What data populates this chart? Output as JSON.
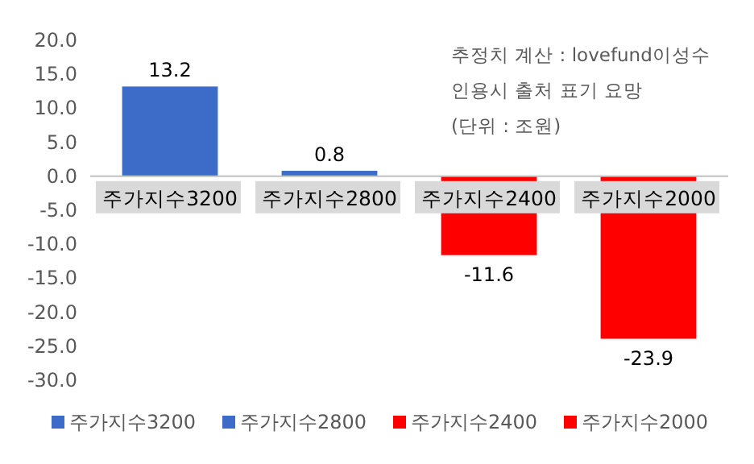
{
  "chart_data": {
    "type": "bar",
    "stacked": true,
    "categories": [
      "주가지수3200",
      "주가지수2800",
      "주가지수2400",
      "주가지수2000"
    ],
    "series": [
      {
        "name": "주가지수3200",
        "color": "#3c6cc8",
        "values": [
          13.2,
          null,
          null,
          null
        ]
      },
      {
        "name": "주가지수2800",
        "color": "#3c6cc8",
        "values": [
          null,
          0.8,
          null,
          null
        ]
      },
      {
        "name": "주가지수2400",
        "color": "#ff0000",
        "values": [
          null,
          null,
          -11.6,
          null
        ]
      },
      {
        "name": "주가지수2000",
        "color": "#ff0000",
        "values": [
          null,
          null,
          null,
          -23.9
        ]
      }
    ],
    "ylim": [
      -30,
      20
    ],
    "yticks": [
      {
        "value": 20,
        "label": "20.0"
      },
      {
        "value": 15,
        "label": "15.0"
      },
      {
        "value": 10,
        "label": "10.0"
      },
      {
        "value": 5,
        "label": "5.0"
      },
      {
        "value": 0,
        "label": "0.0"
      },
      {
        "value": -5,
        "label": "-5.0"
      },
      {
        "value": -10,
        "label": "-10.0"
      },
      {
        "value": -15,
        "label": "-15.0"
      },
      {
        "value": -20,
        "label": "-20.0"
      },
      {
        "value": -25,
        "label": "-25.0"
      },
      {
        "value": -30,
        "label": "-30.0"
      }
    ],
    "grid": false,
    "data_labels": true,
    "legend": "bottom",
    "annotations": [
      "추정치 계산 : lovefund이성수",
      "인용시 출처 표기 요망",
      "(단위 : 조원)"
    ]
  }
}
